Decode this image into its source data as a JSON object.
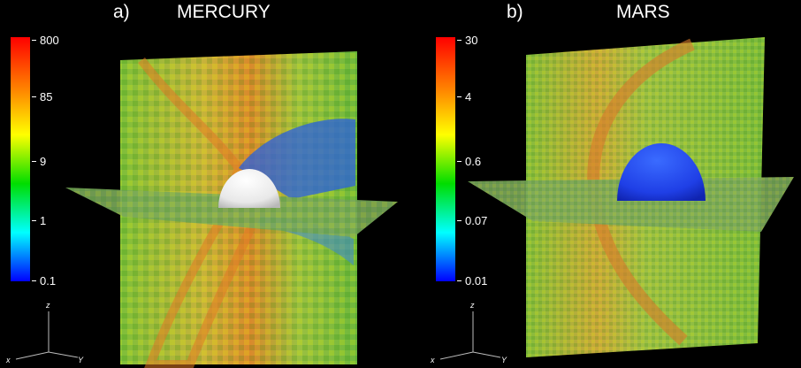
{
  "panels": [
    {
      "letter": "a)",
      "planet": "MERCURY",
      "colorbar_ticks": [
        "800",
        "85",
        "9",
        "1",
        "0.1"
      ],
      "sphere_color": "white"
    },
    {
      "letter": "b)",
      "planet": "MARS",
      "colorbar_ticks": [
        "30",
        "4",
        "0.6",
        "0.07",
        "0.01"
      ],
      "sphere_color": "blue"
    }
  ],
  "axes": {
    "z": "z",
    "x": "x",
    "y": "Y"
  },
  "colors": {
    "background": "#000000",
    "colormap": [
      "#ff0000",
      "#ff8800",
      "#ffff00",
      "#00dd00",
      "#00ffff",
      "#0000ff"
    ]
  }
}
